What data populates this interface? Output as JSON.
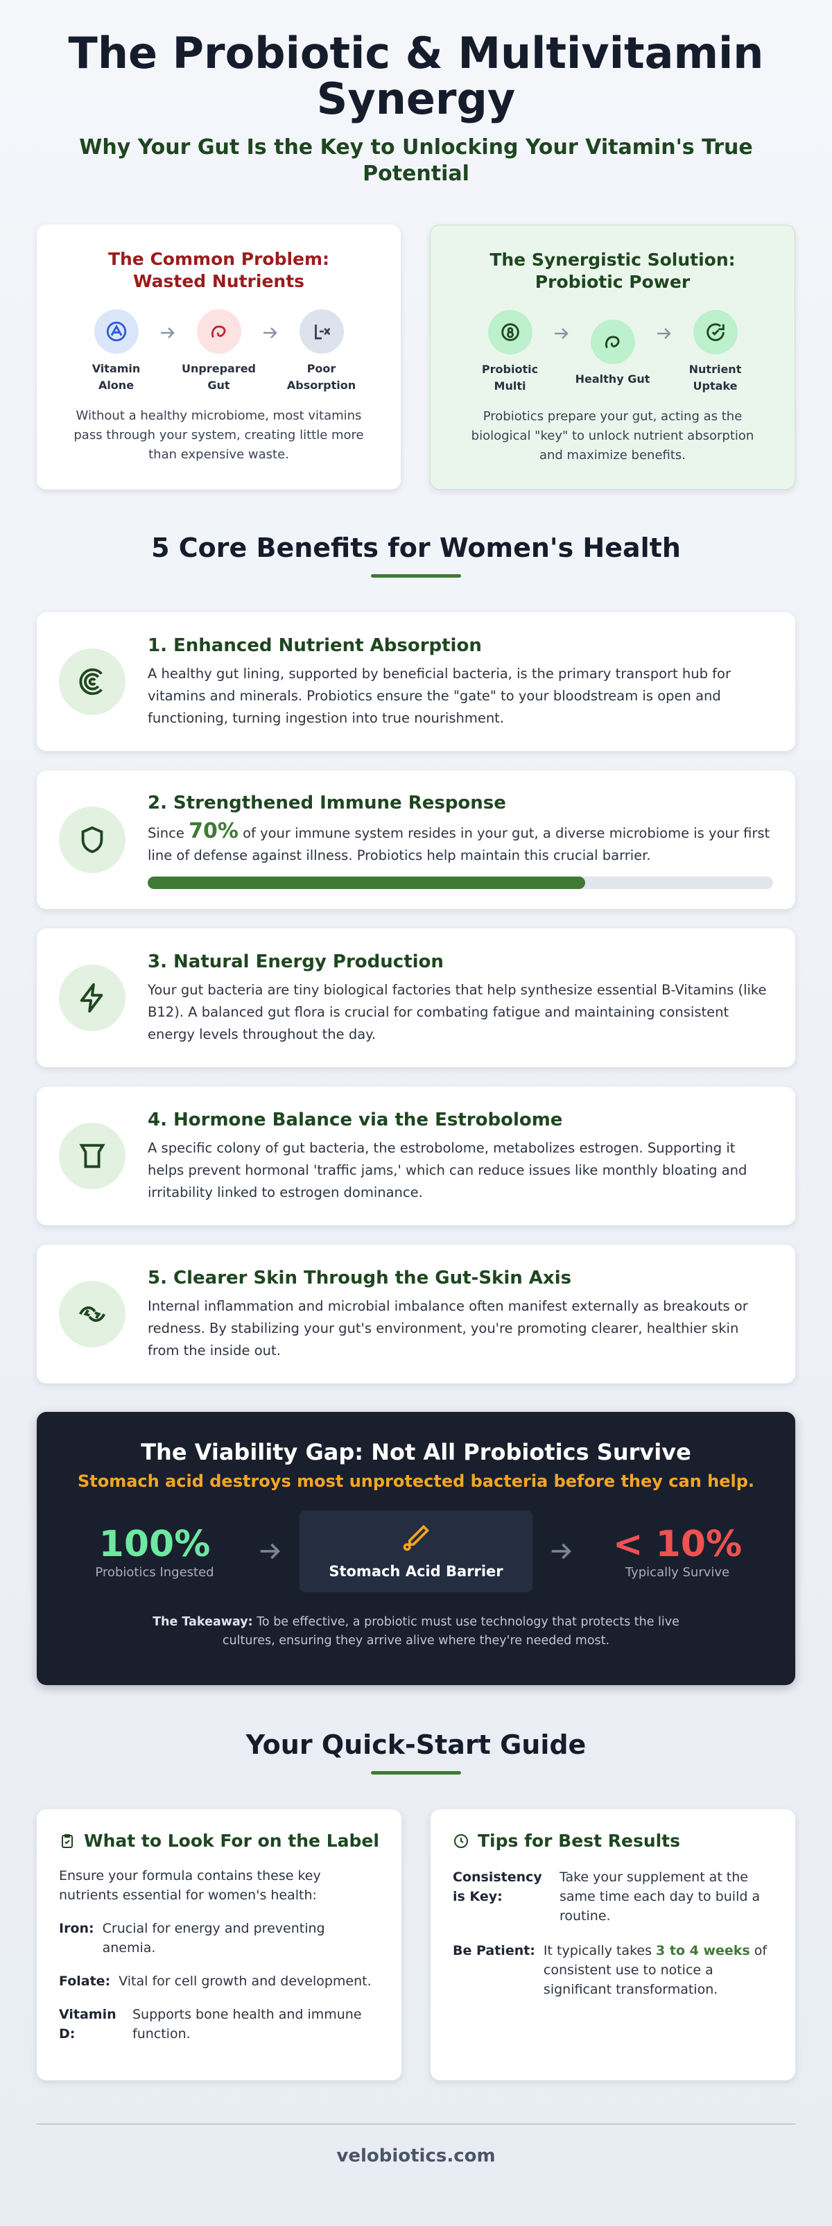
{
  "header": {
    "title": "The Probiotic & Multivitamin Synergy",
    "subtitle": "Why Your Gut Is the Key to Unlocking Your Vitamin's True Potential"
  },
  "comparison": [
    {
      "title": "The Common Problem: Wasted Nutrients",
      "steps": [
        "Vitamin Alone",
        "Unprepared Gut",
        "Poor Absorption"
      ],
      "text": "Without a healthy microbiome, most vitamins pass through your system, creating little more than expensive waste."
    },
    {
      "title": "The Synergistic Solution: Probiotic Power",
      "steps": [
        "Probiotic Multi",
        "Healthy Gut",
        "Nutrient Uptake"
      ],
      "text": "Probiotics prepare your gut, acting as the biological \"key\" to unlock nutrient absorption and maximize benefits."
    }
  ],
  "benefits": {
    "title": "5 Core Benefits for Women's Health",
    "items": [
      {
        "title": "1. Enhanced Nutrient Absorption",
        "text": "A healthy gut lining, supported by beneficial bacteria, is the primary transport hub for vitamins and minerals. Probiotics ensure the \"gate\" to your bloodstream is open and functioning, turning ingestion into true nourishment."
      },
      {
        "title": "2. Strengthened Immune Response",
        "text_before": "Since ",
        "stat": {
          "value": 70,
          "label": "70%"
        },
        "text_after": " of your immune system resides in your gut, a diverse microbiome is your first line of defense against illness. Probiotics help maintain this crucial barrier."
      },
      {
        "title": "3. Natural Energy Production",
        "text": "Your gut bacteria are tiny biological factories that help synthesize essential B-Vitamins (like B12). A balanced gut flora is crucial for combating fatigue and maintaining consistent energy levels throughout the day."
      },
      {
        "title": "4. Hormone Balance via the Estrobolome",
        "text": "A specific colony of gut bacteria, the estrobolome, metabolizes estrogen. Supporting it helps prevent hormonal 'traffic jams,' which can reduce issues like monthly bloating and irritability linked to estrogen dominance."
      },
      {
        "title": "5. Clearer Skin Through the Gut-Skin Axis",
        "text": "Internal inflammation and microbial imbalance often manifest externally as breakouts or redness. By stabilizing your gut's environment, you're promoting clearer, healthier skin from the inside out."
      }
    ]
  },
  "viability": {
    "title": "The Viability Gap: Not All Probiotics Survive",
    "subtitle": "Stomach acid destroys most unprotected bacteria before they can help.",
    "ingested": {
      "figure": "100%",
      "label": "Probiotics Ingested"
    },
    "barrier": "Stomach Acid Barrier",
    "survive": {
      "figure": "< 10%",
      "label": "Typically Survive"
    },
    "takeaway_label": "The Takeaway:",
    "takeaway": "To be effective, a probiotic must use technology that protects the live cultures, ensuring they arrive alive where they're needed most."
  },
  "guide": {
    "title": "Your Quick-Start Guide",
    "label_card": {
      "title": "What to Look For on the Label",
      "intro": "Ensure your formula contains these key nutrients essential for women's health:",
      "items": [
        {
          "term": "Iron:",
          "text": "Crucial for energy and preventing anemia."
        },
        {
          "term": "Folate:",
          "text": "Vital for cell growth and development."
        },
        {
          "term": "Vitamin D:",
          "text": "Supports bone health and immune function."
        }
      ]
    },
    "tips_card": {
      "title": "Tips for Best Results",
      "items": [
        {
          "term": "Consistency is Key:",
          "text": "Take your supplement at the same time each day to build a routine."
        },
        {
          "term": "Be Patient:",
          "text_before": "It typically takes ",
          "highlight": "3 to 4 weeks",
          "text_after": " of consistent use to notice a significant transformation."
        }
      ]
    }
  },
  "footer": "velobiotics.com"
}
